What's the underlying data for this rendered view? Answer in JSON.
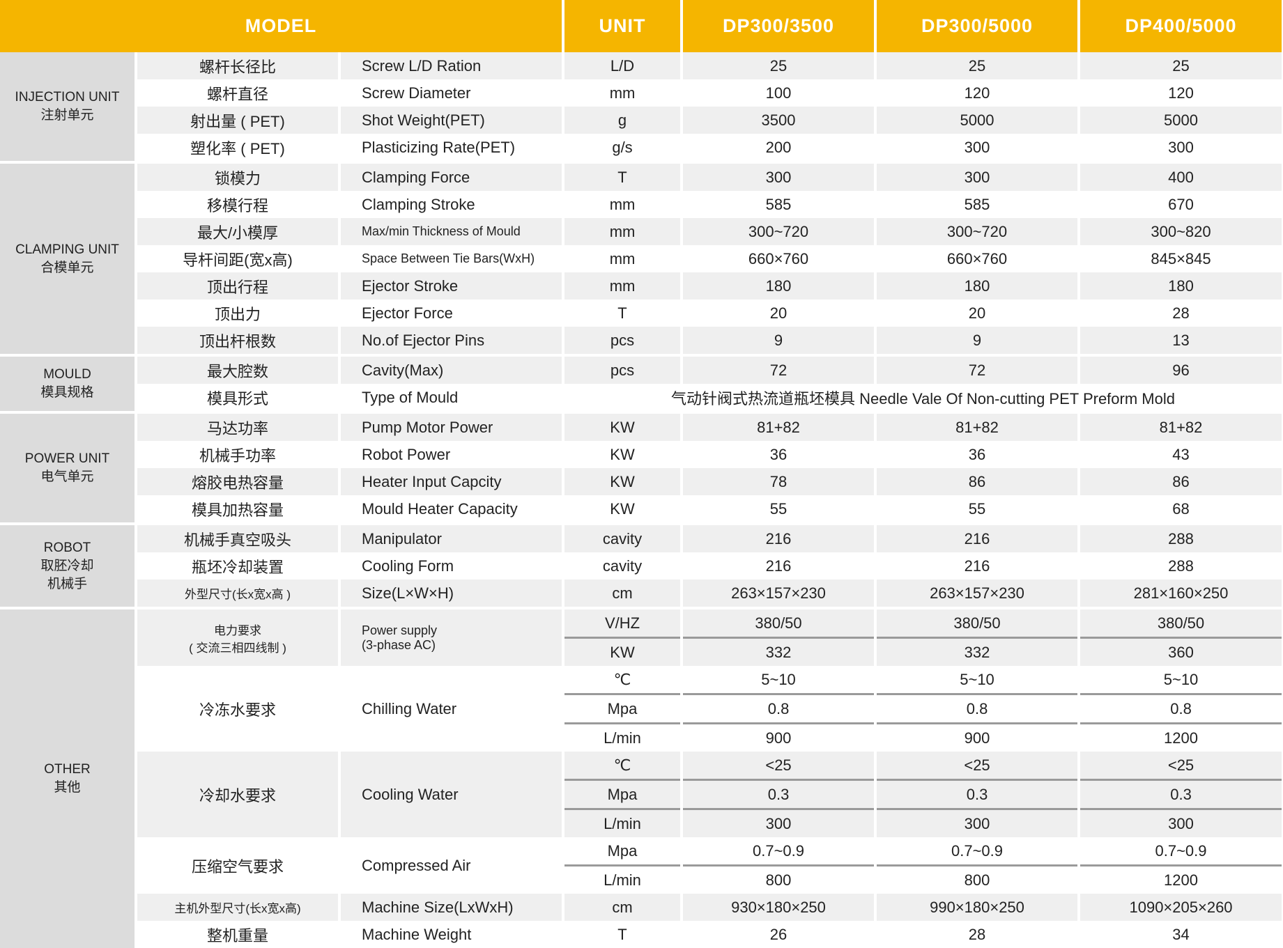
{
  "header": {
    "model": "MODEL",
    "unit": "UNIT",
    "models": [
      "DP300/3500",
      "DP300/5000",
      "DP400/5000"
    ]
  },
  "colors": {
    "header": "#f5b500",
    "group": "#dcdcdc",
    "row_alt": "#efefef"
  },
  "groups": [
    {
      "en": "INJECTION UNIT",
      "cn": "注射单元",
      "rows": [
        {
          "cn": "螺杆长径比",
          "en": "Screw L/D Ration",
          "units": [
            "L/D"
          ],
          "values": [
            [
              "25",
              "25",
              "25"
            ]
          ]
        },
        {
          "cn": "螺杆直径",
          "en": "Screw Diameter",
          "units": [
            "mm"
          ],
          "values": [
            [
              "100",
              "120",
              "120"
            ]
          ]
        },
        {
          "cn": "射出量 ( PET)",
          "en": "Shot Weight(PET)",
          "units": [
            "g"
          ],
          "values": [
            [
              "3500",
              "5000",
              "5000"
            ]
          ]
        },
        {
          "cn": "塑化率 ( PET)",
          "en": "Plasticizing Rate(PET)",
          "units": [
            "g/s"
          ],
          "values": [
            [
              "200",
              "300",
              "300"
            ]
          ]
        }
      ]
    },
    {
      "en": "CLAMPING UNIT",
      "cn": "合模单元",
      "rows": [
        {
          "cn": "锁模力",
          "en": "Clamping Force",
          "units": [
            "T"
          ],
          "values": [
            [
              "300",
              "300",
              "400"
            ]
          ]
        },
        {
          "cn": "移模行程",
          "en": "Clamping Stroke",
          "units": [
            "mm"
          ],
          "values": [
            [
              "585",
              "585",
              "670"
            ]
          ]
        },
        {
          "cn": "最大/小模厚",
          "en": "Max/min Thickness of Mould",
          "units": [
            "mm"
          ],
          "values": [
            [
              "300~720",
              "300~720",
              "300~820"
            ]
          ]
        },
        {
          "cn": "导杆间距(宽x高)",
          "en": "Space Between Tie Bars(WxH)",
          "units": [
            "mm"
          ],
          "values": [
            [
              "660×760",
              "660×760",
              "845×845"
            ]
          ]
        },
        {
          "cn": "顶出行程",
          "en": "Ejector Stroke",
          "units": [
            "mm"
          ],
          "values": [
            [
              "180",
              "180",
              "180"
            ]
          ]
        },
        {
          "cn": "顶出力",
          "en": "Ejector Force",
          "units": [
            "T"
          ],
          "values": [
            [
              "20",
              "20",
              "28"
            ]
          ]
        },
        {
          "cn": "顶出杆根数",
          "en": "No.of Ejector Pins",
          "units": [
            "pcs"
          ],
          "values": [
            [
              "9",
              "9",
              "13"
            ]
          ]
        }
      ]
    },
    {
      "en": "MOULD",
      "cn": "模具规格",
      "rows": [
        {
          "cn": "最大腔数",
          "en": "Cavity(Max)",
          "units": [
            "pcs"
          ],
          "values": [
            [
              "72",
              "72",
              "96"
            ]
          ]
        },
        {
          "cn": "模具形式",
          "en": "Type of Mould",
          "span_value": "气动针阀式热流道瓶坯模具  Needle Vale Of Non-cutting PET Preform Mold"
        }
      ]
    },
    {
      "en": "POWER UNIT",
      "cn": "电气单元",
      "rows": [
        {
          "cn": "马达功率",
          "en": "Pump Motor Power",
          "units": [
            "KW"
          ],
          "values": [
            [
              "81+82",
              "81+82",
              "81+82"
            ]
          ]
        },
        {
          "cn": "机械手功率",
          "en": "Robot Power",
          "units": [
            "KW"
          ],
          "values": [
            [
              "36",
              "36",
              "43"
            ]
          ]
        },
        {
          "cn": "熔胶电热容量",
          "en": "Heater Input Capcity",
          "units": [
            "KW"
          ],
          "values": [
            [
              "78",
              "86",
              "86"
            ]
          ]
        },
        {
          "cn": "模具加热容量",
          "en": "Mould Heater Capacity",
          "units": [
            "KW"
          ],
          "values": [
            [
              "55",
              "55",
              "68"
            ]
          ]
        }
      ]
    },
    {
      "en": "ROBOT",
      "cn": "取胚冷却\n机械手",
      "rows": [
        {
          "cn": "机械手真空吸头",
          "en": "Manipulator",
          "units": [
            "cavity"
          ],
          "values": [
            [
              "216",
              "216",
              "288"
            ]
          ]
        },
        {
          "cn": "瓶坯冷却装置",
          "en": "Cooling Form",
          "units": [
            "cavity"
          ],
          "values": [
            [
              "216",
              "216",
              "288"
            ]
          ]
        },
        {
          "cn": "外型尺寸(长x宽x高 )",
          "en": "Size(L×W×H)",
          "units": [
            "cm"
          ],
          "values": [
            [
              "263×157×230",
              "263×157×230",
              "281×160×250"
            ]
          ]
        }
      ]
    },
    {
      "en": "OTHER",
      "cn": "其他",
      "rows": [
        {
          "cn": "电力要求\n( 交流三相四线制 )",
          "en": "Power supply\n(3-phase AC)",
          "units": [
            "V/HZ",
            "KW"
          ],
          "values": [
            [
              "380/50",
              "380/50",
              "380/50"
            ],
            [
              "332",
              "332",
              "360"
            ]
          ]
        },
        {
          "cn": "冷冻水要求",
          "en": "Chilling Water",
          "units": [
            "℃",
            "Mpa",
            "L/min"
          ],
          "values": [
            [
              "5~10",
              "5~10",
              "5~10"
            ],
            [
              "0.8",
              "0.8",
              "0.8"
            ],
            [
              "900",
              "900",
              "1200"
            ]
          ]
        },
        {
          "cn": "冷却水要求",
          "en": "Cooling Water",
          "units": [
            "℃",
            "Mpa",
            "L/min"
          ],
          "values": [
            [
              "<25",
              "<25",
              "<25"
            ],
            [
              "0.3",
              "0.3",
              "0.3"
            ],
            [
              "300",
              "300",
              "300"
            ]
          ]
        },
        {
          "cn": "压缩空气要求",
          "en": "Compressed Air",
          "units": [
            "Mpa",
            "L/min"
          ],
          "values": [
            [
              "0.7~0.9",
              "0.7~0.9",
              "0.7~0.9"
            ],
            [
              "800",
              "800",
              "1200"
            ]
          ]
        },
        {
          "cn": "主机外型尺寸(长x宽x高)",
          "en": "Machine Size(LxWxH)",
          "units": [
            "cm"
          ],
          "values": [
            [
              "930×180×250",
              "990×180×250",
              "1090×205×260"
            ]
          ]
        },
        {
          "cn": "整机重量",
          "en": "Machine Weight",
          "units": [
            "T"
          ],
          "values": [
            [
              "26",
              "28",
              "34"
            ]
          ]
        }
      ]
    }
  ]
}
